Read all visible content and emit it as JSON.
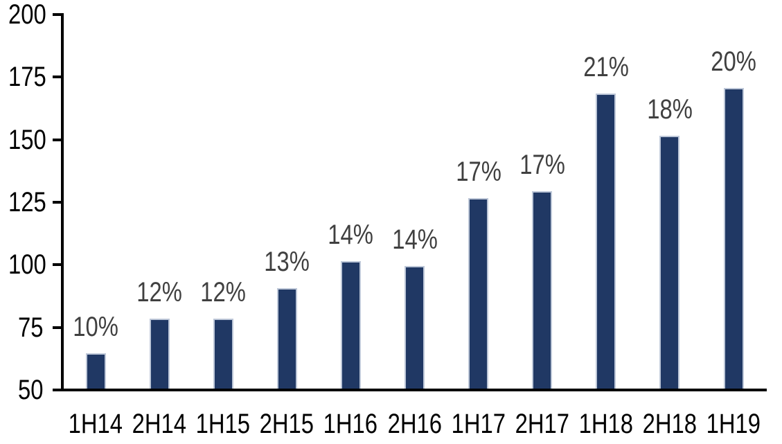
{
  "chart": {
    "background": "#ffffff"
  },
  "chart_data": {
    "type": "bar",
    "title": "",
    "subtitle": "",
    "xlabel": "",
    "ylabel": "",
    "categories": [
      "1H14",
      "2H14",
      "1H15",
      "2H15",
      "1H16",
      "2H16",
      "1H17",
      "2H17",
      "1H18",
      "2H18",
      "1H19"
    ],
    "values": [
      64,
      78,
      78,
      90,
      101,
      99,
      126,
      129,
      168,
      151,
      170
    ],
    "data_labels": [
      "10%",
      "12%",
      "12%",
      "13%",
      "14%",
      "14%",
      "17%",
      "17%",
      "21%",
      "18%",
      "20%"
    ],
    "ylim": [
      50,
      200
    ],
    "yticks": [
      50,
      75,
      100,
      125,
      150,
      175,
      200
    ],
    "ytick_labels": [
      "50",
      "75",
      "100",
      "125",
      "150",
      "175",
      "200"
    ],
    "grid": false,
    "legend": false,
    "colors": {
      "bar_fill": "#203864",
      "bar_border": "#bdc7d8",
      "data_label": "#404040",
      "axis_line": "#000000",
      "tick_label": "#000000"
    }
  }
}
